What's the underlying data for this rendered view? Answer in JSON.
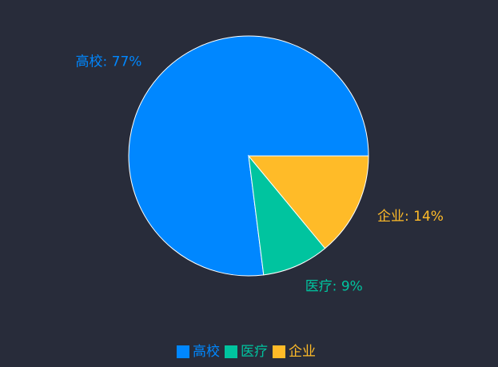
{
  "chart_data": {
    "type": "pie",
    "categories": [
      "高校",
      "医疗",
      "企业"
    ],
    "values": [
      77,
      9,
      14
    ],
    "value_labels": [
      "高校: 77%",
      "医疗: 9%",
      "企业: 14%"
    ],
    "colors": [
      "#0087ff",
      "#00c49f",
      "#ffbb28"
    ],
    "legend": "bottom"
  }
}
